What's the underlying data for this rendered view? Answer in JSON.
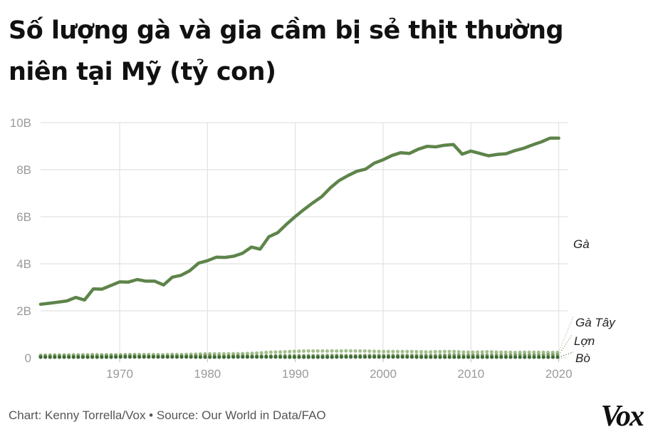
{
  "title_lines": [
    "Số lượng gà và gia cầm bị sẻ thịt thường",
    "niên tại Mỹ (tỷ con)"
  ],
  "footer": "Chart: Kenny Torrella/Vox • Source: Our World in Data/FAO",
  "logo": "Vox",
  "colors": {
    "chicken": "#5e844a",
    "turkey": "#a3bf8e",
    "pig": "#7f9f66",
    "cattle": "#3e6a34",
    "grid": "#e2e2e2",
    "tick": "#9a9a9a",
    "label": "#222222"
  },
  "chart_data": {
    "type": "line",
    "title": "Số lượng gà và gia cầm bị sẻ thịt thường niên tại Mỹ (tỷ con)",
    "xlabel": "",
    "ylabel": "",
    "xlim": [
      1961,
      2021
    ],
    "ylim": [
      0,
      10
    ],
    "xticks": [
      1970,
      1980,
      1990,
      2000,
      2010,
      2020
    ],
    "yticks": [
      0,
      2,
      4,
      6,
      8,
      10
    ],
    "ytick_labels": [
      "0",
      "2B",
      "4B",
      "6B",
      "8B",
      "10B"
    ],
    "grid": true,
    "x": [
      1961,
      1962,
      1963,
      1964,
      1965,
      1966,
      1967,
      1968,
      1969,
      1970,
      1971,
      1972,
      1973,
      1974,
      1975,
      1976,
      1977,
      1978,
      1979,
      1980,
      1981,
      1982,
      1983,
      1984,
      1985,
      1986,
      1987,
      1988,
      1989,
      1990,
      1991,
      1992,
      1993,
      1994,
      1995,
      1996,
      1997,
      1998,
      1999,
      2000,
      2001,
      2002,
      2003,
      2004,
      2005,
      2006,
      2007,
      2008,
      2009,
      2010,
      2011,
      2012,
      2013,
      2014,
      2015,
      2016,
      2017,
      2018,
      2019,
      2020
    ],
    "series": [
      {
        "name": "Gà",
        "style": "solid",
        "values": [
          2.28,
          2.32,
          2.37,
          2.42,
          2.57,
          2.46,
          2.93,
          2.92,
          3.08,
          3.23,
          3.22,
          3.33,
          3.26,
          3.26,
          3.1,
          3.43,
          3.51,
          3.71,
          4.03,
          4.13,
          4.28,
          4.27,
          4.32,
          4.45,
          4.71,
          4.62,
          5.15,
          5.32,
          5.68,
          6.01,
          6.31,
          6.59,
          6.85,
          7.23,
          7.54,
          7.75,
          7.93,
          8.02,
          8.28,
          8.42,
          8.6,
          8.72,
          8.69,
          8.87,
          8.99,
          8.97,
          9.04,
          9.07,
          8.66,
          8.79,
          8.69,
          8.59,
          8.65,
          8.68,
          8.81,
          8.91,
          9.05,
          9.18,
          9.34,
          9.34
        ]
      },
      {
        "name": "Gà Tây",
        "style": "dotted",
        "values": [
          0.11,
          0.12,
          0.12,
          0.12,
          0.13,
          0.13,
          0.14,
          0.13,
          0.13,
          0.13,
          0.14,
          0.14,
          0.14,
          0.14,
          0.13,
          0.15,
          0.14,
          0.15,
          0.16,
          0.17,
          0.17,
          0.17,
          0.18,
          0.18,
          0.19,
          0.21,
          0.24,
          0.25,
          0.26,
          0.28,
          0.29,
          0.29,
          0.29,
          0.29,
          0.29,
          0.3,
          0.29,
          0.29,
          0.28,
          0.27,
          0.27,
          0.27,
          0.27,
          0.26,
          0.25,
          0.26,
          0.27,
          0.27,
          0.25,
          0.24,
          0.25,
          0.26,
          0.24,
          0.24,
          0.23,
          0.24,
          0.24,
          0.24,
          0.23,
          0.23
        ]
      },
      {
        "name": "Lợn",
        "style": "dotted",
        "values": [
          0.08,
          0.08,
          0.09,
          0.09,
          0.08,
          0.08,
          0.08,
          0.09,
          0.09,
          0.09,
          0.09,
          0.09,
          0.08,
          0.08,
          0.07,
          0.08,
          0.08,
          0.08,
          0.09,
          0.1,
          0.09,
          0.08,
          0.09,
          0.09,
          0.08,
          0.08,
          0.08,
          0.09,
          0.09,
          0.09,
          0.09,
          0.09,
          0.09,
          0.1,
          0.1,
          0.09,
          0.09,
          0.1,
          0.1,
          0.1,
          0.1,
          0.1,
          0.1,
          0.1,
          0.1,
          0.1,
          0.11,
          0.12,
          0.11,
          0.11,
          0.11,
          0.11,
          0.11,
          0.11,
          0.12,
          0.12,
          0.12,
          0.12,
          0.13,
          0.13
        ]
      },
      {
        "name": "Bò",
        "style": "dotted",
        "values": [
          0.03,
          0.03,
          0.03,
          0.03,
          0.03,
          0.03,
          0.03,
          0.03,
          0.03,
          0.04,
          0.04,
          0.04,
          0.04,
          0.04,
          0.04,
          0.04,
          0.04,
          0.04,
          0.03,
          0.03,
          0.03,
          0.03,
          0.04,
          0.04,
          0.04,
          0.04,
          0.04,
          0.04,
          0.03,
          0.03,
          0.03,
          0.03,
          0.03,
          0.03,
          0.04,
          0.04,
          0.04,
          0.04,
          0.04,
          0.04,
          0.04,
          0.04,
          0.04,
          0.03,
          0.03,
          0.03,
          0.03,
          0.03,
          0.03,
          0.03,
          0.03,
          0.03,
          0.03,
          0.03,
          0.03,
          0.03,
          0.03,
          0.03,
          0.03,
          0.03
        ]
      }
    ]
  }
}
